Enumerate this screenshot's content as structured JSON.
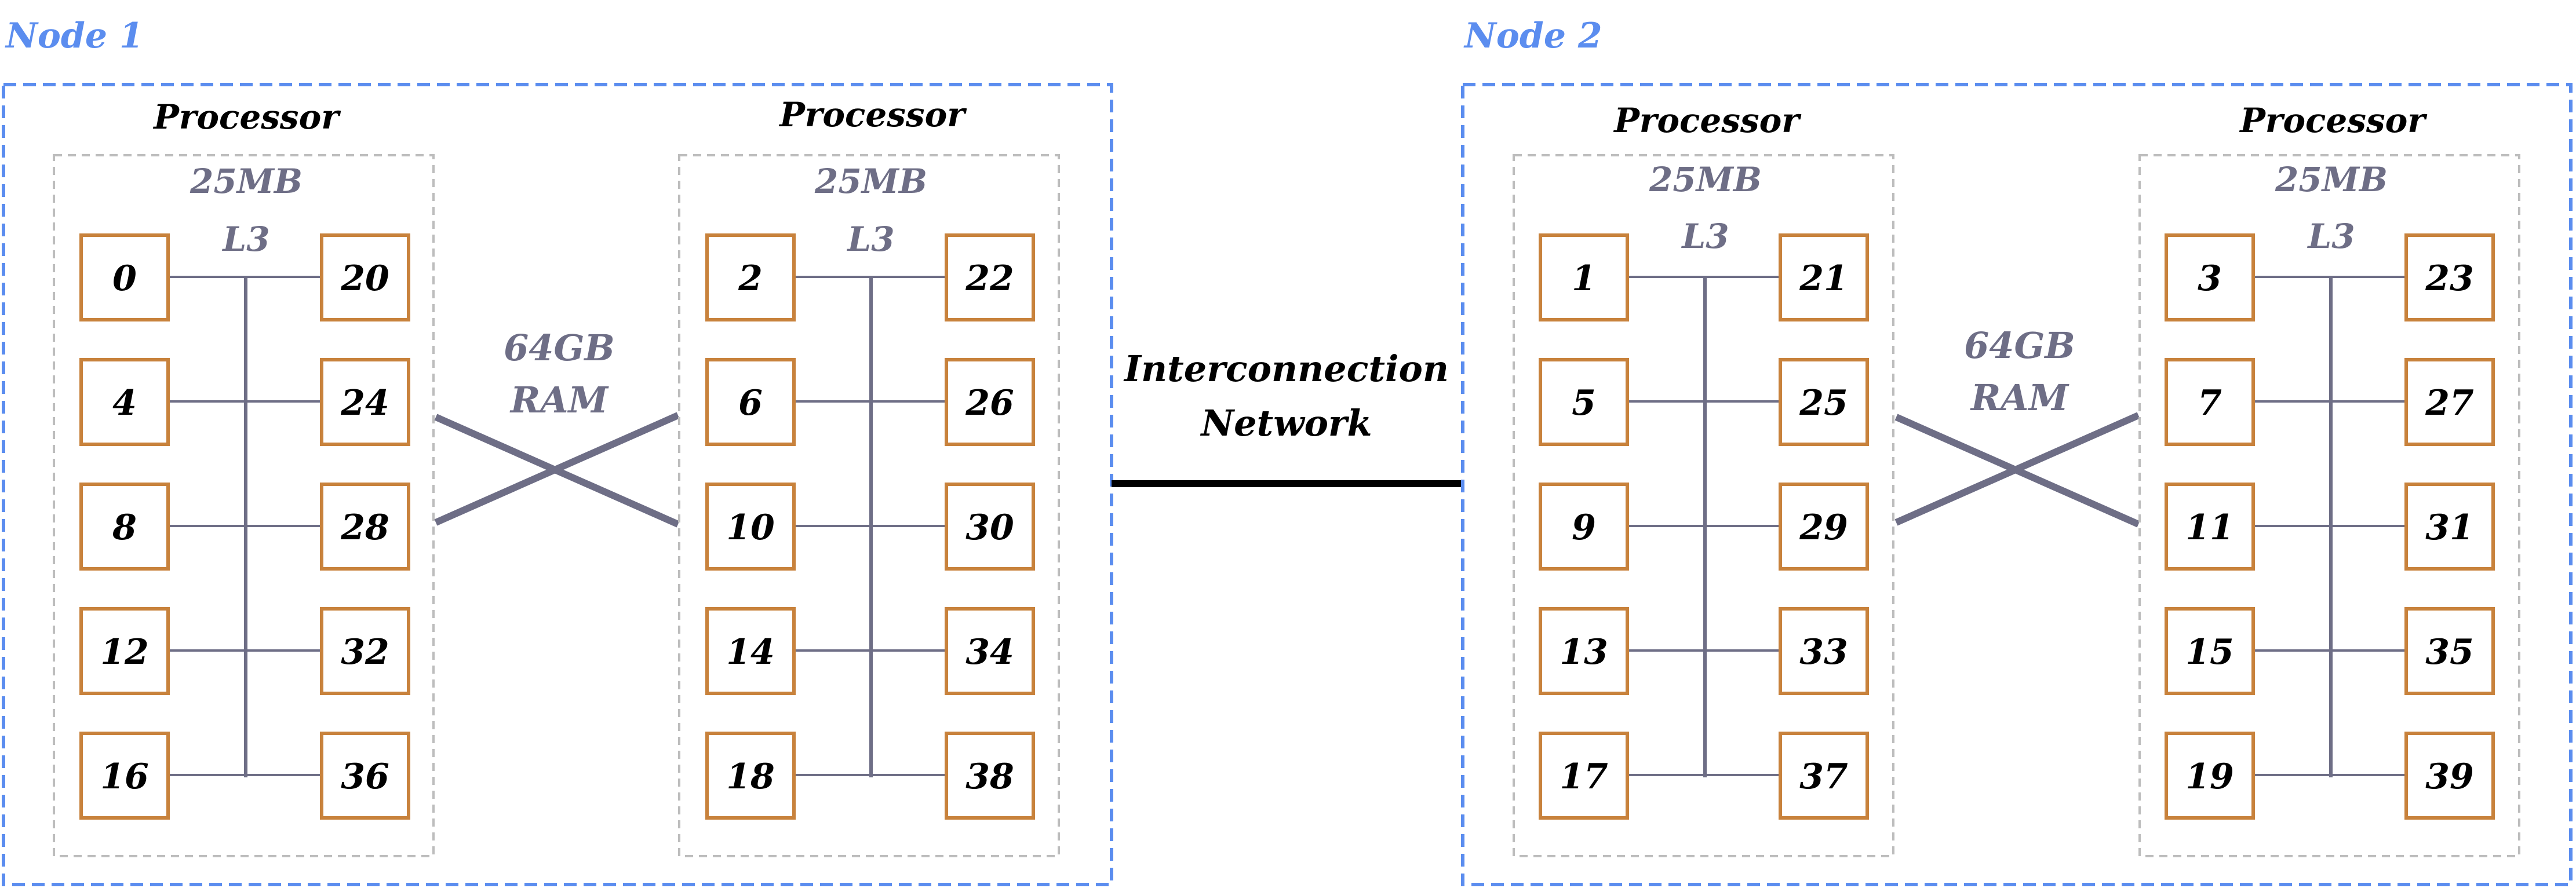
{
  "colors": {
    "node_border": "#5b8def",
    "processor_border": "#bdbdbd",
    "core_border": "#c8823c",
    "bus": "#6e6e86",
    "network": "#000000"
  },
  "interconnect": {
    "line1": "Interconnection",
    "line2": "Network"
  },
  "nodes": [
    {
      "label": "Node 1",
      "ram": {
        "line1": "64GB",
        "line2": "RAM"
      },
      "processors": [
        {
          "label": "Processor",
          "cache_size": "25MB",
          "cache_level": "L3",
          "left_cores": [
            "0",
            "4",
            "8",
            "12",
            "16"
          ],
          "right_cores": [
            "20",
            "24",
            "28",
            "32",
            "36"
          ]
        },
        {
          "label": "Processor",
          "cache_size": "25MB",
          "cache_level": "L3",
          "left_cores": [
            "2",
            "6",
            "10",
            "14",
            "18"
          ],
          "right_cores": [
            "22",
            "26",
            "30",
            "34",
            "38"
          ]
        }
      ]
    },
    {
      "label": "Node 2",
      "ram": {
        "line1": "64GB",
        "line2": "RAM"
      },
      "processors": [
        {
          "label": "Processor",
          "cache_size": "25MB",
          "cache_level": "L3",
          "left_cores": [
            "1",
            "5",
            "9",
            "13",
            "17"
          ],
          "right_cores": [
            "21",
            "25",
            "29",
            "33",
            "37"
          ]
        },
        {
          "label": "Processor",
          "cache_size": "25MB",
          "cache_level": "L3",
          "left_cores": [
            "3",
            "7",
            "11",
            "15",
            "19"
          ],
          "right_cores": [
            "23",
            "27",
            "31",
            "35",
            "39"
          ]
        }
      ]
    }
  ]
}
